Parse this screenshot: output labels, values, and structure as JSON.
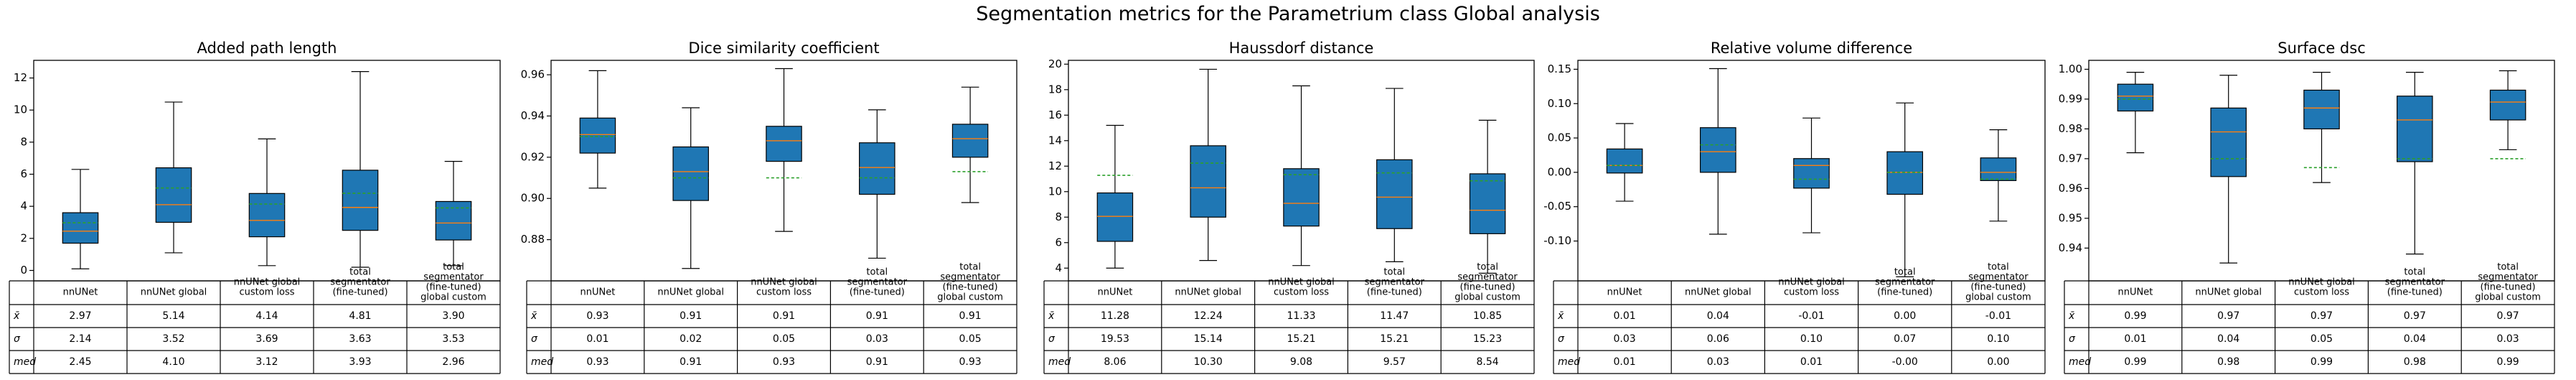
{
  "figure": {
    "title": "Segmentation metrics for the Parametrium class Global analysis"
  },
  "colors": {
    "box_fill": "#1f77b4",
    "median": "#ff7f0e",
    "mean": "#2ca02c",
    "line": "#000000"
  },
  "table_row_labels": [
    "x̄",
    "σ",
    "med"
  ],
  "chart_data": [
    {
      "type": "box",
      "title": "Added path length",
      "categories": [
        "nnUNet",
        "nnUNet global",
        "nnUNet global\ncustom loss",
        "total\nsegmentator\n(fine-tuned)",
        "total\nsegmentator\n(fine-tuned)\nglobal custom"
      ],
      "ylim": [
        -0.65,
        13.1
      ],
      "yticks": [
        0,
        2,
        4,
        6,
        8,
        10,
        12
      ],
      "tick_decimals": 0,
      "boxes": [
        {
          "whislo": 0.1,
          "q1": 1.7,
          "med": 2.45,
          "q3": 3.6,
          "whishi": 6.3,
          "mean": 2.97
        },
        {
          "whislo": 1.1,
          "q1": 3.0,
          "med": 4.1,
          "q3": 6.4,
          "whishi": 10.5,
          "mean": 5.14
        },
        {
          "whislo": 0.3,
          "q1": 2.1,
          "med": 3.12,
          "q3": 4.8,
          "whishi": 8.2,
          "mean": 4.14
        },
        {
          "whislo": 0.2,
          "q1": 2.5,
          "med": 3.93,
          "q3": 6.25,
          "whishi": 12.4,
          "mean": 4.81
        },
        {
          "whislo": 0.3,
          "q1": 1.9,
          "med": 2.96,
          "q3": 4.3,
          "whishi": 6.8,
          "mean": 3.9
        }
      ],
      "table": {
        "mean": [
          "2.97",
          "5.14",
          "4.14",
          "4.81",
          "3.90"
        ],
        "sigma": [
          "2.14",
          "3.52",
          "3.69",
          "3.63",
          "3.53"
        ],
        "med": [
          "2.45",
          "4.10",
          "3.12",
          "3.93",
          "2.96"
        ]
      }
    },
    {
      "type": "box",
      "title": "Dice similarity coefficient",
      "categories": [
        "nnUNet",
        "nnUNet global",
        "nnUNet global\ncustom loss",
        "total\nsegmentator\n(fine-tuned)",
        "total\nsegmentator\n(fine-tuned)\nglobal custom"
      ],
      "ylim": [
        0.86,
        0.967
      ],
      "yticks": [
        0.88,
        0.9,
        0.92,
        0.94,
        0.96
      ],
      "tick_decimals": 2,
      "boxes": [
        {
          "whislo": 0.905,
          "q1": 0.922,
          "med": 0.931,
          "q3": 0.939,
          "whishi": 0.962,
          "mean": 0.93
        },
        {
          "whislo": 0.866,
          "q1": 0.899,
          "med": 0.913,
          "q3": 0.925,
          "whishi": 0.944,
          "mean": 0.91
        },
        {
          "whislo": 0.884,
          "q1": 0.918,
          "med": 0.928,
          "q3": 0.935,
          "whishi": 0.963,
          "mean": 0.91
        },
        {
          "whislo": 0.871,
          "q1": 0.902,
          "med": 0.915,
          "q3": 0.927,
          "whishi": 0.943,
          "mean": 0.91
        },
        {
          "whislo": 0.898,
          "q1": 0.92,
          "med": 0.929,
          "q3": 0.936,
          "whishi": 0.954,
          "mean": 0.913
        }
      ],
      "table": {
        "mean": [
          "0.93",
          "0.91",
          "0.91",
          "0.91",
          "0.91"
        ],
        "sigma": [
          "0.01",
          "0.02",
          "0.05",
          "0.03",
          "0.05"
        ],
        "med": [
          "0.93",
          "0.91",
          "0.93",
          "0.91",
          "0.93"
        ]
      }
    },
    {
      "type": "box",
      "title": "Haussdorf distance",
      "categories": [
        "nnUNet",
        "nnUNet global",
        "nnUNet global\ncustom loss",
        "total\nsegmentator\n(fine-tuned)",
        "total\nsegmentator\n(fine-tuned)\nglobal custom"
      ],
      "ylim": [
        3.0,
        20.3
      ],
      "yticks": [
        4,
        6,
        8,
        10,
        12,
        14,
        16,
        18,
        20
      ],
      "tick_decimals": 0,
      "boxes": [
        {
          "whislo": 4.0,
          "q1": 6.1,
          "med": 8.06,
          "q3": 9.9,
          "whishi": 15.2,
          "mean": 11.28
        },
        {
          "whislo": 4.6,
          "q1": 8.0,
          "med": 10.3,
          "q3": 13.6,
          "whishi": 19.6,
          "mean": 12.24
        },
        {
          "whislo": 4.2,
          "q1": 7.3,
          "med": 9.08,
          "q3": 11.8,
          "whishi": 18.3,
          "mean": 11.33
        },
        {
          "whislo": 4.5,
          "q1": 7.1,
          "med": 9.57,
          "q3": 12.5,
          "whishi": 18.1,
          "mean": 11.47
        },
        {
          "whislo": 3.6,
          "q1": 6.7,
          "med": 8.54,
          "q3": 11.4,
          "whishi": 15.6,
          "mean": 10.85
        }
      ],
      "table": {
        "mean": [
          "11.28",
          "12.24",
          "11.33",
          "11.47",
          "10.85"
        ],
        "sigma": [
          "19.53",
          "15.14",
          "15.21",
          "15.21",
          "15.23"
        ],
        "med": [
          "8.06",
          "10.30",
          "9.08",
          "9.57",
          "8.54"
        ]
      }
    },
    {
      "type": "box",
      "title": "Relative volume difference",
      "categories": [
        "nnUNet",
        "nnUNet global",
        "nnUNet global\ncustom loss",
        "total\nsegmentator\n(fine-tuned)",
        "total\nsegmentator\n(fine-tuned)\nglobal custom"
      ],
      "ylim": [
        -0.158,
        0.163
      ],
      "yticks": [
        -0.1,
        -0.05,
        0.0,
        0.05,
        0.1,
        0.15
      ],
      "tick_decimals": 2,
      "boxes": [
        {
          "whislo": -0.042,
          "q1": -0.001,
          "med": 0.01,
          "q3": 0.034,
          "whishi": 0.071,
          "mean": 0.01
        },
        {
          "whislo": -0.09,
          "q1": 0.0,
          "med": 0.03,
          "q3": 0.065,
          "whishi": 0.151,
          "mean": 0.04
        },
        {
          "whislo": -0.088,
          "q1": -0.023,
          "med": 0.01,
          "q3": 0.02,
          "whishi": 0.079,
          "mean": -0.01
        },
        {
          "whislo": -0.152,
          "q1": -0.032,
          "med": 0.0,
          "q3": 0.03,
          "whishi": 0.101,
          "mean": 0.0
        },
        {
          "whislo": -0.071,
          "q1": -0.012,
          "med": 0.0,
          "q3": 0.021,
          "whishi": 0.062,
          "mean": -0.01
        }
      ],
      "table": {
        "mean": [
          "0.01",
          "0.04",
          "-0.01",
          "0.00",
          "-0.01"
        ],
        "sigma": [
          "0.03",
          "0.06",
          "0.10",
          "0.07",
          "0.10"
        ],
        "med": [
          "0.01",
          "0.03",
          "0.01",
          "-0.00",
          "0.00"
        ]
      }
    },
    {
      "type": "box",
      "title": "Surface dsc",
      "categories": [
        "nnUNet",
        "nnUNet global",
        "nnUNet global\ncustom loss",
        "total\nsegmentator\n(fine-tuned)",
        "total\nsegmentator\n(fine-tuned)\nglobal custom"
      ],
      "ylim": [
        0.929,
        1.003
      ],
      "yticks": [
        0.94,
        0.95,
        0.96,
        0.97,
        0.98,
        0.99,
        1.0
      ],
      "tick_decimals": 2,
      "boxes": [
        {
          "whislo": 0.972,
          "q1": 0.986,
          "med": 0.991,
          "q3": 0.995,
          "whishi": 0.999,
          "mean": 0.99
        },
        {
          "whislo": 0.935,
          "q1": 0.964,
          "med": 0.979,
          "q3": 0.987,
          "whishi": 0.998,
          "mean": 0.97
        },
        {
          "whislo": 0.962,
          "q1": 0.98,
          "med": 0.987,
          "q3": 0.993,
          "whishi": 0.999,
          "mean": 0.967
        },
        {
          "whislo": 0.938,
          "q1": 0.969,
          "med": 0.983,
          "q3": 0.991,
          "whishi": 0.999,
          "mean": 0.97
        },
        {
          "whislo": 0.973,
          "q1": 0.983,
          "med": 0.989,
          "q3": 0.993,
          "whishi": 0.9995,
          "mean": 0.97
        }
      ],
      "table": {
        "mean": [
          "0.99",
          "0.97",
          "0.97",
          "0.97",
          "0.97"
        ],
        "sigma": [
          "0.01",
          "0.04",
          "0.05",
          "0.04",
          "0.03"
        ],
        "med": [
          "0.99",
          "0.98",
          "0.99",
          "0.98",
          "0.99"
        ]
      }
    }
  ]
}
